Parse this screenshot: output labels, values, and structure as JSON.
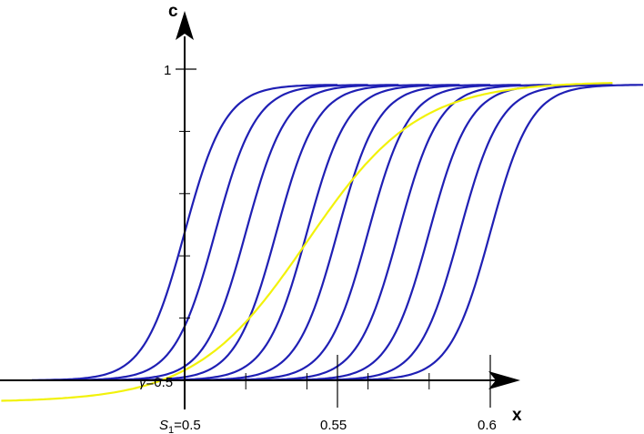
{
  "chart_data": {
    "type": "line",
    "xlabel": "x",
    "ylabel": "c",
    "xlim": [
      0.45,
      0.65
    ],
    "ylim": [
      0.5,
      1.0
    ],
    "x_ticks": [
      {
        "value": 0.5,
        "label_base": "S",
        "label_sub": "1",
        "label_rest": "=0.5"
      },
      {
        "value": 0.55,
        "label": "0.55"
      },
      {
        "value": 0.6,
        "label": "0.6"
      }
    ],
    "x_minor_ticks": [
      0.52,
      0.54,
      0.56,
      0.58
    ],
    "y_ticks": [
      {
        "value": 0.5,
        "label_greek": "γ",
        "label_rest": "=0.5"
      },
      {
        "value": 1.0,
        "label": "1"
      }
    ],
    "y_minor_ticks": [
      0.6,
      0.7,
      0.8,
      0.9
    ],
    "grid": false,
    "legend": "none",
    "colors": {
      "family_curves": "#1f1fb4",
      "envelope_curve": "#f2f20a",
      "axes": "#000000"
    },
    "family": {
      "count": 11,
      "shape": "logistic",
      "low": 0.5,
      "high": 0.975,
      "steepness": 150,
      "centers": [
        0.5,
        0.51,
        0.52,
        0.53,
        0.54,
        0.55,
        0.56,
        0.57,
        0.58,
        0.59,
        0.6
      ],
      "half_span": 0.05
    },
    "envelope": {
      "shape": "logistic",
      "low": 0.465,
      "high": 0.98,
      "steepness": 55,
      "center": 0.54,
      "x_range": [
        0.44,
        0.64
      ]
    }
  }
}
